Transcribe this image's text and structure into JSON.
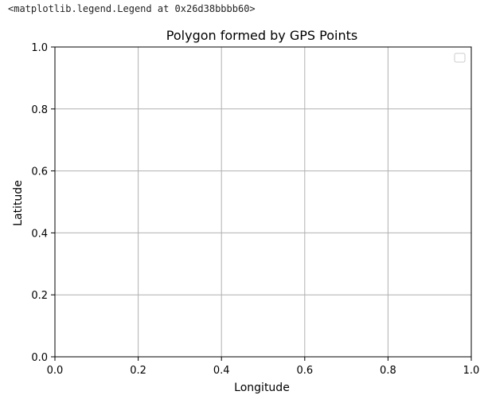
{
  "output_repr": "<matplotlib.legend.Legend at 0x26d38bbbb60>",
  "chart_data": {
    "type": "line",
    "title": "Polygon formed by GPS Points",
    "xlabel": "Longitude",
    "ylabel": "Latitude",
    "xlim": [
      0.0,
      1.0
    ],
    "ylim": [
      0.0,
      1.0
    ],
    "x_ticks": [
      "0.0",
      "0.2",
      "0.4",
      "0.6",
      "0.8",
      "1.0"
    ],
    "y_ticks": [
      "0.0",
      "0.2",
      "0.4",
      "0.6",
      "0.8",
      "1.0"
    ],
    "grid": true,
    "legend": {
      "placement": "top-right",
      "entries": []
    },
    "series": []
  },
  "colors": {
    "grid": "#b0b0b0",
    "spine": "#000000",
    "legend_border": "#cccccc"
  }
}
